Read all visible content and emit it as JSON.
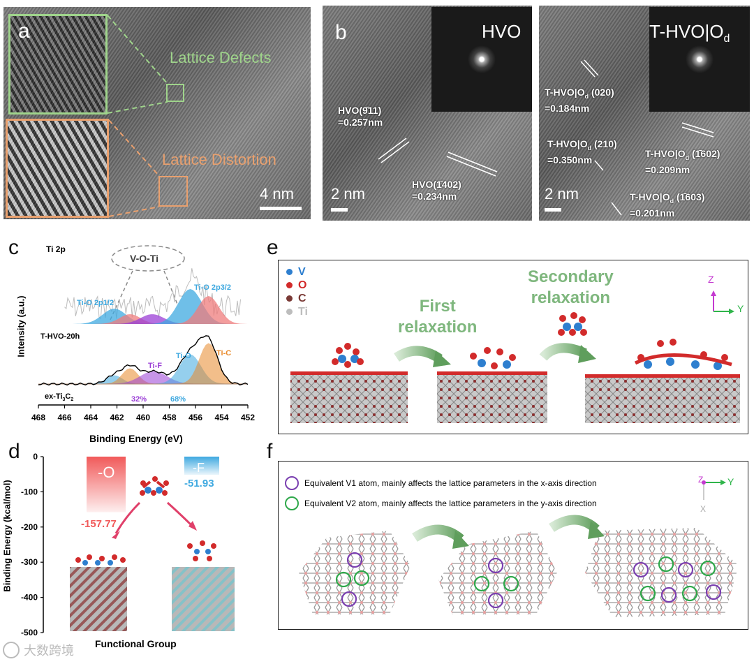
{
  "panel_a": {
    "letter": "a",
    "label_defects": "Lattice Defects",
    "label_distortion": "Lattice Distortion",
    "scale": "4 nm",
    "colors": {
      "defects": "#9fd48b",
      "distortion": "#e9a06e"
    }
  },
  "panel_b": {
    "letter": "b",
    "left": {
      "title": "HVO",
      "plane1": "HVO(9̄11)\n=0.257nm",
      "plane2": "HVO(1̄402)\n=0.234nm",
      "scale": "2 nm"
    },
    "right": {
      "title": "T-HVO|O",
      "title_sub": "d",
      "plane1": "T-HVO|O",
      "plane1_sub": "d",
      "plane1_rest": " (020)\n=0.184nm",
      "plane2": "T-HVO|O",
      "plane2_sub": "d",
      "plane2_rest": " (210)\n=0.350nm",
      "plane3": "T-HVO|O",
      "plane3_sub": "d",
      "plane3_rest": " (1̄602)\n=0.209nm",
      "plane4": "T-HVO|O",
      "plane4_sub": "d",
      "plane4_rest": " (1̄603)\n=0.201nm",
      "scale": "2 nm"
    }
  },
  "panel_c": {
    "letter": "c",
    "subtitle": "Ti 2p",
    "bubble": "V-O-Ti",
    "ylabel": "Intensity (a.u.)",
    "xlabel": "Binding Energy (eV)",
    "top_sample": "T-HVO-20h",
    "bottom_sample": "ex-Ti",
    "bottom_sample_sub": "3",
    "bottom_sample_end": "C",
    "bottom_sample_sub2": "2",
    "peak_tio_2p12": "Ti-O 2p1/2",
    "peak_tio_2p32": "Ti-O 2p3/2",
    "peak_tif": "Ti-F",
    "peak_tio": "Ti-O",
    "peak_tic": "Ti-C",
    "pct_f": "32%",
    "pct_o": "68%",
    "colors": {
      "blue": "#3fa9e0",
      "pink": "#ef7c7c",
      "purple": "#9b3fd6",
      "orange": "#e98a2c"
    }
  },
  "chart_data": [
    {
      "type": "line",
      "title": "",
      "xlabel": "Binding Energy (eV)",
      "ylabel": "Intensity (a.u.)",
      "x_ticks": [
        468,
        466,
        464,
        462,
        460,
        458,
        456,
        454,
        452
      ],
      "xlim": [
        468,
        452
      ],
      "series": [
        {
          "name": "T-HVO-20h",
          "peaks": [
            {
              "label": "Ti-O 2p1/2",
              "x": 462.2
            },
            {
              "label": "Ti-O 2p3/2",
              "x": 456.4
            }
          ]
        },
        {
          "name": "ex-Ti3C2",
          "peaks": [
            {
              "label": "Ti-F",
              "x": 459.2
            },
            {
              "label": "Ti-O",
              "x": 456.4
            },
            {
              "label": "Ti-C",
              "x": 455.0
            }
          ]
        }
      ]
    },
    {
      "type": "bar",
      "title": "",
      "xlabel": "Functional Group",
      "ylabel": "Binding Energy (kcal/mol)",
      "ylim": [
        -500,
        0
      ],
      "y_ticks": [
        0,
        -100,
        -200,
        -300,
        -400,
        -500
      ],
      "categories": [
        "-O",
        "-F"
      ],
      "values": [
        -157.77,
        -51.93
      ],
      "value_labels": [
        "-157.77",
        "-51.93"
      ],
      "colors": [
        "#f15a5a",
        "#3fa9e0"
      ]
    }
  ],
  "panel_d": {
    "letter": "d",
    "bar_o": "-O",
    "bar_f": "-F",
    "val_o": "-157.77",
    "val_f": "-51.93"
  },
  "panel_e": {
    "letter": "e",
    "legend": [
      {
        "label": "V",
        "color": "#2e7fcf"
      },
      {
        "label": "O",
        "color": "#d22b2b"
      },
      {
        "label": "C",
        "color": "#7a3a36"
      },
      {
        "label": "Ti",
        "color": "#bdbdbd"
      }
    ],
    "first": "First\nrelaxation",
    "second": "Secondary\nrelaxation",
    "axis_z": "Z",
    "axis_y": "Y",
    "green": "#7fb77e"
  },
  "panel_f": {
    "letter": "f",
    "legend1": "Equivalent V1 atom, mainly affects the lattice parameters in the x-axis direction",
    "legend2": "Equivalent V2 atom, mainly affects the lattice parameters in the y-axis direction",
    "axis_z": "Z",
    "axis_y": "Y",
    "axis_x": "X",
    "colors": {
      "v1": "#7a3fb0",
      "v2": "#2ea84a"
    }
  },
  "watermark": "大数跨境"
}
